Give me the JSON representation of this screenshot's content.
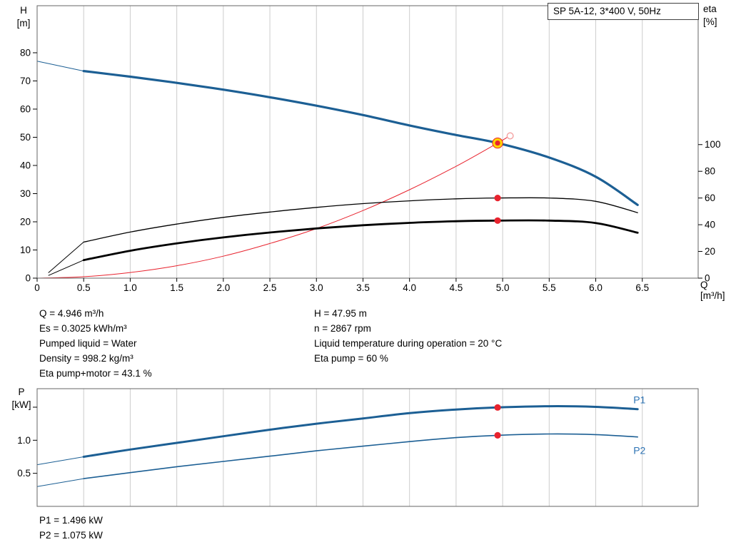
{
  "colors": {
    "blue": "#1c5f94",
    "red": "#e8232e",
    "black": "#000000",
    "grid": "#cccccc",
    "border": "#666666",
    "duty_yellow": "#ffd400",
    "open_circle": "#f4a0a0",
    "label_blue": "#2e74b5",
    "text": "#000000"
  },
  "info": {
    "left": [
      "Q = 4.946 m³/h",
      "Es = 0.3025 kWh/m³",
      "Pumped liquid = Water",
      "Density = 998.2 kg/m³",
      "Eta pump+motor = 43.1 %"
    ],
    "right": [
      "H = 47.95 m",
      "n = 2867 rpm",
      "Liquid temperature during operation = 20 °C",
      "Eta pump = 60 %"
    ]
  },
  "power_readout": {
    "p1": "P1 = 1.496 kW",
    "p2": "P2 = 1.075 kW"
  },
  "chart_data": [
    {
      "type": "line",
      "title": "SP 5A-12, 3*400 V, 50Hz",
      "xlabel": "Q [m³/h]",
      "ylabel_left": "H\n[m]",
      "ylabel_right": "eta\n[%]",
      "xlim": [
        0,
        7.1
      ],
      "x_ticks": [
        0,
        0.5,
        1,
        1.5,
        2,
        2.5,
        3,
        3.5,
        4,
        4.5,
        5,
        5.5,
        6,
        6.5
      ],
      "x_tick_labels": [
        "0",
        "0.5",
        "1.0",
        "1.5",
        "2.0",
        "2.5",
        "3.0",
        "3.5",
        "4.0",
        "4.5",
        "5.0",
        "5.5",
        "6.0",
        "6.5"
      ],
      "show_x_labels": true,
      "y_left_lim": [
        0,
        96.7
      ],
      "y_left_ticks": [
        0,
        10,
        20,
        30,
        40,
        50,
        60,
        70,
        80
      ],
      "y_left_tick_labels": [
        "0",
        "10",
        "20",
        "30",
        "40",
        "50",
        "60",
        "70",
        "80"
      ],
      "y_right_lim": [
        0,
        204
      ],
      "y_right_ticks": [
        0,
        20,
        40,
        60,
        80,
        100
      ],
      "y_right_tick_labels": [
        "0",
        "20",
        "40",
        "60",
        "80",
        "100"
      ],
      "grid": "vertical",
      "series": [
        {
          "name": "system-curve",
          "axis": "left",
          "color": "red",
          "width": 1,
          "points": [
            [
              0,
              0
            ],
            [
              0.5,
              0.5
            ],
            [
              1,
              2
            ],
            [
              1.5,
              4.4
            ],
            [
              2,
              7.8
            ],
            [
              2.5,
              12.3
            ],
            [
              3,
              17.6
            ],
            [
              3.5,
              24
            ],
            [
              4,
              31.4
            ],
            [
              4.5,
              39.7
            ],
            [
              4.946,
              47.95
            ],
            [
              5.05,
              50
            ]
          ],
          "end_marker": "open-circle"
        },
        {
          "name": "eta-pump-curve",
          "axis": "right",
          "color": "black",
          "width": 1.3,
          "lead": [
            [
              0.12,
              4
            ],
            [
              0.5,
              27
            ]
          ],
          "points": [
            [
              0.5,
              27
            ],
            [
              1,
              34.5
            ],
            [
              1.5,
              40.5
            ],
            [
              2,
              45.5
            ],
            [
              2.5,
              49.5
            ],
            [
              3,
              53
            ],
            [
              3.5,
              55.8
            ],
            [
              4,
              57.9
            ],
            [
              4.5,
              59.4
            ],
            [
              4.946,
              60
            ],
            [
              5.5,
              60
            ],
            [
              6,
              57.5
            ],
            [
              6.45,
              49
            ]
          ]
        },
        {
          "name": "eta-pump-motor-curve",
          "axis": "right",
          "color": "black",
          "width": 2.8,
          "lead": [
            [
              0.12,
              2
            ],
            [
              0.5,
              13.5
            ]
          ],
          "points": [
            [
              0.5,
              13.5
            ],
            [
              1,
              20.5
            ],
            [
              1.5,
              26
            ],
            [
              2,
              30.5
            ],
            [
              2.5,
              34.2
            ],
            [
              3,
              37.2
            ],
            [
              3.5,
              39.6
            ],
            [
              4,
              41.4
            ],
            [
              4.5,
              42.6
            ],
            [
              4.946,
              43.1
            ],
            [
              5.5,
              43.1
            ],
            [
              6,
              41.3
            ],
            [
              6.45,
              34
            ]
          ]
        },
        {
          "name": "head-curve",
          "axis": "left",
          "color": "blue",
          "width": 3.2,
          "lead": [
            [
              0,
              77
            ],
            [
              0.5,
              73.5
            ]
          ],
          "points": [
            [
              0.5,
              73.5
            ],
            [
              1,
              71.5
            ],
            [
              1.5,
              69.3
            ],
            [
              2,
              66.9
            ],
            [
              2.5,
              64.2
            ],
            [
              3,
              61.2
            ],
            [
              3.5,
              57.9
            ],
            [
              4,
              54.2
            ],
            [
              4.5,
              50.8
            ],
            [
              4.946,
              47.95
            ],
            [
              5.5,
              42.8
            ],
            [
              6,
              36
            ],
            [
              6.45,
              26
            ]
          ]
        }
      ],
      "markers": [
        {
          "x": 4.946,
          "y": 47.95,
          "axis": "left",
          "style": "duty"
        },
        {
          "x": 4.946,
          "y": 60,
          "axis": "right",
          "style": "dot"
        },
        {
          "x": 4.946,
          "y": 43.1,
          "axis": "right",
          "style": "dot"
        }
      ]
    },
    {
      "type": "line",
      "title": "",
      "xlabel": "",
      "ylabel_left": "P\n[kW]",
      "xlim": [
        0,
        7.1
      ],
      "x_ticks": [
        0.5,
        1,
        1.5,
        2,
        2.5,
        3,
        3.5,
        4,
        4.5,
        5,
        5.5,
        6,
        6.5
      ],
      "show_x_labels": false,
      "y_left_lim": [
        0,
        1.78
      ],
      "y_left_ticks": [
        0.5,
        1,
        1.5
      ],
      "y_left_tick_labels": [
        "0.5",
        "1.0",
        ""
      ],
      "grid": "vertical",
      "series": [
        {
          "name": "p1-curve",
          "axis": "left",
          "color": "blue",
          "width": 3,
          "lead": [
            [
              0,
              0.63
            ],
            [
              0.5,
              0.75
            ]
          ],
          "points": [
            [
              0.5,
              0.75
            ],
            [
              1,
              0.86
            ],
            [
              1.5,
              0.96
            ],
            [
              2,
              1.06
            ],
            [
              2.5,
              1.16
            ],
            [
              3,
              1.25
            ],
            [
              3.5,
              1.33
            ],
            [
              4,
              1.41
            ],
            [
              4.5,
              1.465
            ],
            [
              4.946,
              1.496
            ],
            [
              5.5,
              1.515
            ],
            [
              6,
              1.505
            ],
            [
              6.45,
              1.47
            ]
          ],
          "end_label": "P1",
          "label_offset": [
            -6,
            -8
          ]
        },
        {
          "name": "p2-curve",
          "axis": "left",
          "color": "blue",
          "width": 1.6,
          "lead": [
            [
              0,
              0.3
            ],
            [
              0.5,
              0.42
            ]
          ],
          "points": [
            [
              0.5,
              0.42
            ],
            [
              1,
              0.51
            ],
            [
              1.5,
              0.6
            ],
            [
              2,
              0.68
            ],
            [
              2.5,
              0.76
            ],
            [
              3,
              0.84
            ],
            [
              3.5,
              0.91
            ],
            [
              4,
              0.98
            ],
            [
              4.5,
              1.04
            ],
            [
              4.946,
              1.075
            ],
            [
              5.5,
              1.095
            ],
            [
              6,
              1.085
            ],
            [
              6.45,
              1.05
            ]
          ],
          "end_label": "P2",
          "label_offset": [
            -6,
            24
          ]
        }
      ],
      "markers": [
        {
          "x": 4.946,
          "y": 1.496,
          "axis": "left",
          "style": "dot"
        },
        {
          "x": 4.946,
          "y": 1.075,
          "axis": "left",
          "style": "dot"
        }
      ]
    }
  ]
}
